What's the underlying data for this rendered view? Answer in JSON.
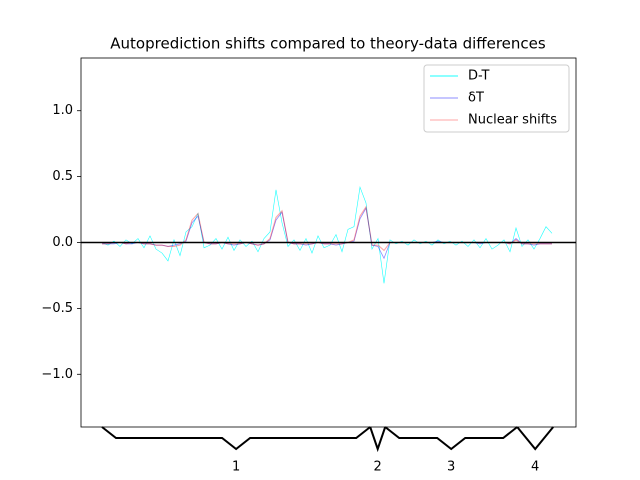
{
  "chart_data": {
    "type": "line",
    "title": "Autoprediction shifts compared to theory-data differences",
    "x": [
      0,
      1,
      2,
      3,
      4,
      5,
      6,
      7,
      8,
      9,
      10,
      11,
      12,
      13,
      14,
      15,
      16,
      17,
      18,
      19,
      20,
      21,
      22,
      23,
      24,
      25,
      26,
      27,
      28,
      29,
      30,
      31,
      32,
      33,
      34,
      35,
      36,
      37,
      38,
      39,
      40,
      41,
      42,
      43,
      44,
      45,
      46,
      47,
      48,
      49,
      50,
      51,
      52,
      53,
      54,
      55,
      56,
      57,
      58,
      59,
      60,
      61,
      62,
      63,
      64,
      65,
      66,
      67,
      68,
      69,
      70,
      71,
      72,
      73,
      74,
      75
    ],
    "series": [
      {
        "name": "D-T",
        "color": "#00ffff",
        "values": [
          0.0,
          -0.02,
          0.01,
          -0.03,
          0.02,
          -0.01,
          0.03,
          -0.04,
          0.05,
          -0.05,
          -0.08,
          -0.14,
          0.02,
          -0.1,
          0.08,
          0.12,
          0.22,
          -0.04,
          -0.02,
          0.03,
          -0.05,
          0.04,
          -0.06,
          0.02,
          -0.03,
          0.01,
          -0.07,
          0.03,
          0.08,
          0.4,
          0.15,
          -0.03,
          0.02,
          -0.06,
          0.03,
          -0.08,
          0.05,
          -0.04,
          -0.02,
          0.06,
          -0.07,
          0.1,
          0.12,
          0.42,
          0.3,
          -0.05,
          0.03,
          -0.31,
          0.02,
          -0.01,
          0.01,
          -0.02,
          0.02,
          -0.01,
          0.01,
          -0.02,
          0.02,
          -0.01,
          0.01,
          -0.02,
          0.01,
          -0.03,
          0.02,
          -0.04,
          0.03,
          -0.05,
          -0.02,
          0.02,
          -0.07,
          0.11,
          -0.03,
          0.02,
          -0.05,
          0.03,
          0.12,
          0.07
        ]
      },
      {
        "name": "δT",
        "color": "#0000ff",
        "values": [
          -0.01,
          -0.01,
          -0.01,
          0,
          -0.01,
          -0.01,
          0,
          -0.01,
          -0.01,
          -0.02,
          -0.02,
          -0.03,
          -0.02,
          -0.01,
          0.01,
          0.15,
          0.2,
          0,
          -0.01,
          -0.01,
          0,
          -0.01,
          -0.02,
          -0.01,
          0,
          -0.01,
          -0.02,
          -0.01,
          0.02,
          0.17,
          0.23,
          0,
          -0.01,
          -0.01,
          -0.02,
          -0.01,
          0,
          -0.01,
          -0.01,
          -0.02,
          -0.01,
          0,
          0.01,
          0.18,
          0.26,
          -0.02,
          -0.03,
          -0.12,
          0,
          0,
          0,
          0,
          0,
          0,
          0,
          0,
          0.01,
          0,
          0,
          0,
          0,
          0,
          0,
          -0.01,
          0,
          0,
          0,
          0,
          -0.01,
          0.03,
          -0.01,
          -0.01,
          -0.02,
          -0.01,
          -0.01,
          -0.01
        ]
      },
      {
        "name": "Nuclear shifts",
        "color": "#ff0000",
        "values": [
          -0.01,
          -0.01,
          0,
          0,
          -0.01,
          0,
          0,
          -0.01,
          -0.01,
          -0.02,
          -0.02,
          -0.03,
          -0.03,
          -0.02,
          0.02,
          0.17,
          0.22,
          0,
          -0.01,
          -0.01,
          0,
          -0.01,
          -0.01,
          -0.01,
          0,
          -0.01,
          -0.02,
          -0.01,
          0.03,
          0.19,
          0.24,
          0,
          -0.01,
          -0.01,
          -0.01,
          -0.01,
          0,
          -0.01,
          -0.01,
          -0.01,
          -0.01,
          0,
          0.02,
          0.2,
          0.27,
          -0.02,
          -0.02,
          -0.06,
          0,
          0,
          0,
          0,
          0,
          0,
          0,
          0,
          0,
          0,
          0,
          0,
          0,
          0,
          0,
          0,
          0,
          0,
          0,
          0,
          -0.01,
          0.02,
          -0.01,
          -0.01,
          -0.01,
          -0.01,
          -0.01,
          -0.01
        ]
      }
    ],
    "xlim": [
      -3.5,
      79
    ],
    "ylim": [
      -1.4,
      1.4
    ],
    "yticks": [
      {
        "value": -1.0,
        "label": "−1.0"
      },
      {
        "value": -0.5,
        "label": "−0.5"
      },
      {
        "value": 0.0,
        "label": "0.0"
      },
      {
        "value": 0.5,
        "label": "0.5"
      },
      {
        "value": 1.0,
        "label": "1.0"
      }
    ],
    "reference_line": 0,
    "legend": "upper right",
    "brackets": [
      {
        "label": "1",
        "range": [
          0,
          44.7
        ]
      },
      {
        "label": "2",
        "range": [
          44.7,
          47.2
        ]
      },
      {
        "label": "3",
        "range": [
          47.2,
          69.2
        ]
      },
      {
        "label": "4",
        "range": [
          69.2,
          75.2
        ]
      }
    ]
  }
}
